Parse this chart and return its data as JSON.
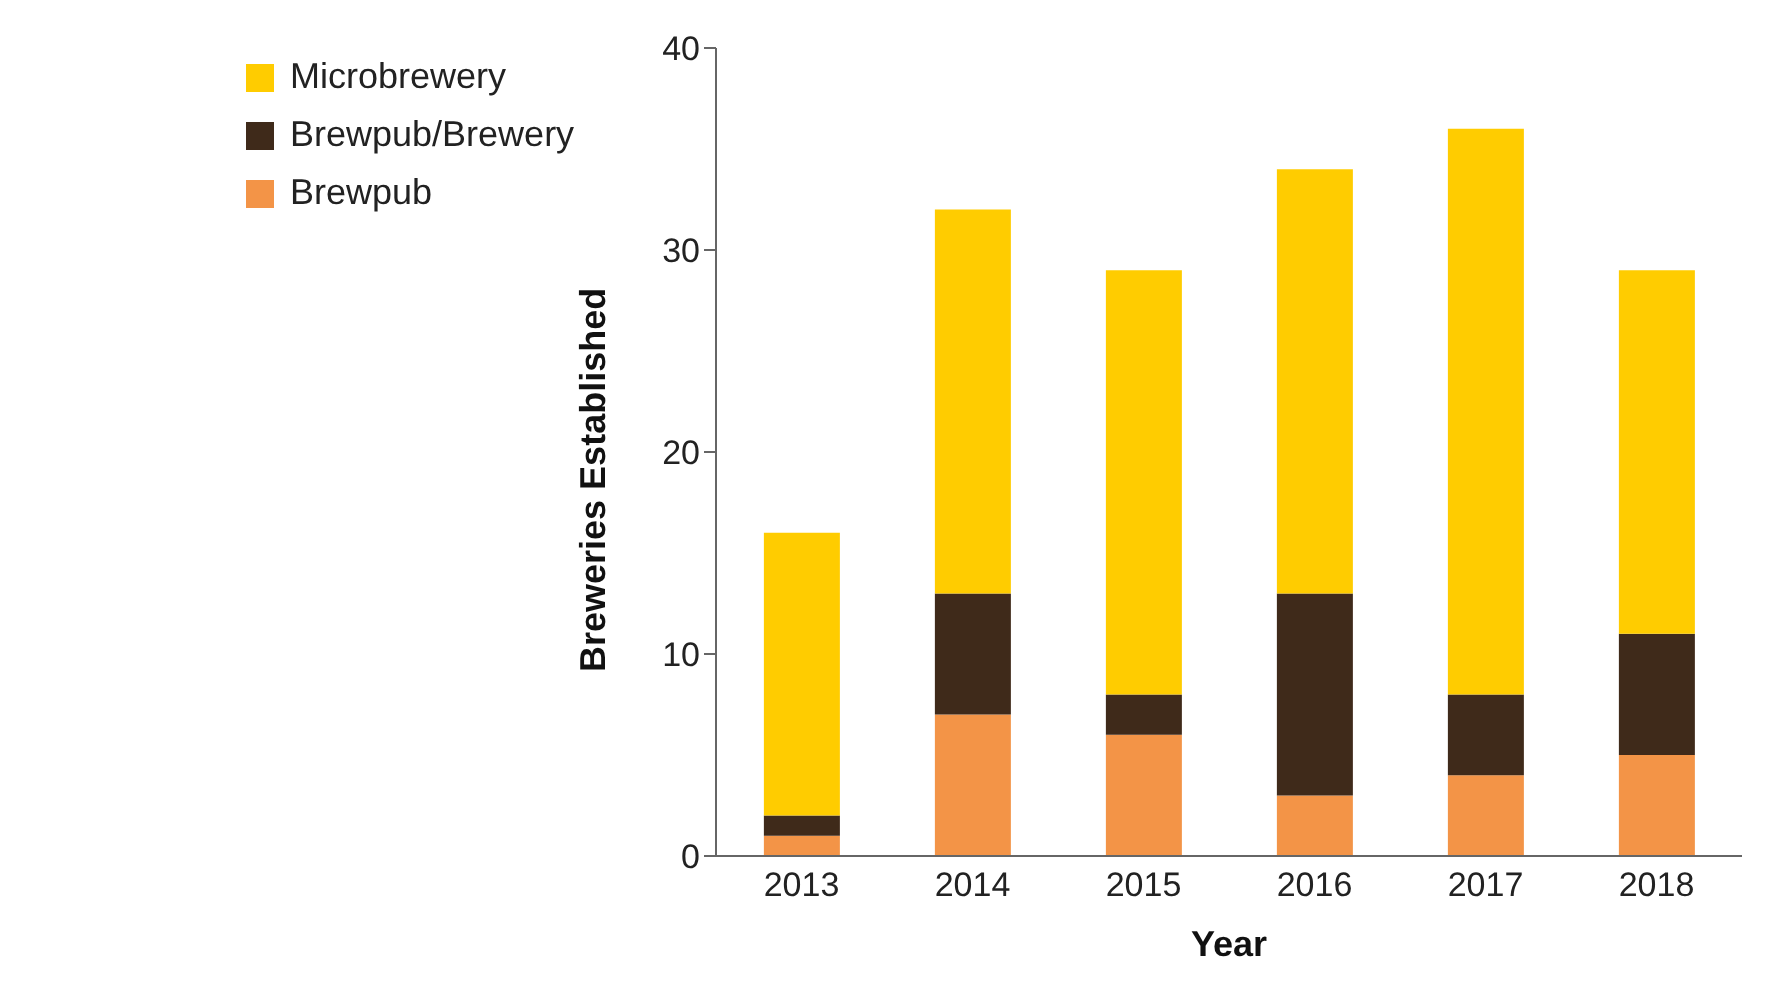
{
  "chart_data": {
    "type": "bar",
    "stacked": true,
    "xlabel": "Year",
    "ylabel": "Breweries Established",
    "categories": [
      "2013",
      "2014",
      "2015",
      "2016",
      "2017",
      "2018"
    ],
    "series": [
      {
        "name": "Brewpub",
        "color": "#f39447",
        "values": [
          1,
          7,
          6,
          3,
          4,
          5
        ]
      },
      {
        "name": "Brewpub/Brewery",
        "color": "#3f2a1a",
        "values": [
          1,
          6,
          2,
          10,
          4,
          6
        ]
      },
      {
        "name": "Microbrewery",
        "color": "#ffcc00",
        "values": [
          14,
          19,
          21,
          21,
          28,
          18
        ]
      }
    ],
    "ylim": [
      0,
      40
    ],
    "yticks": [
      0,
      10,
      20,
      30,
      40
    ],
    "grid": false,
    "legend": "top left"
  }
}
